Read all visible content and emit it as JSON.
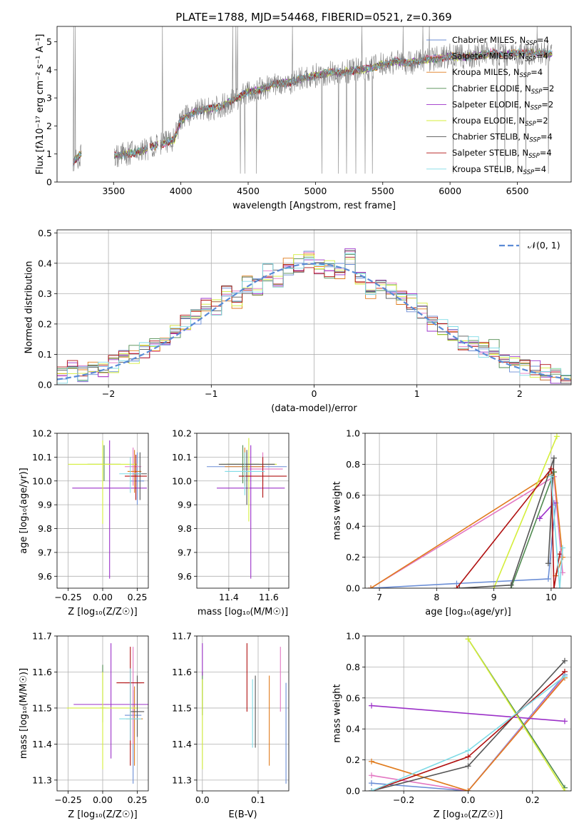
{
  "figure_title": "PLATE=1788, MJD=54468, FIBERID=0521, z=0.369",
  "colors": {
    "Chabrier MILES": "#6b8ed6",
    "Salpeter MILES": "#e377c2",
    "Kroupa MILES": "#e07b1c",
    "Chabrier ELODIE": "#4f8a4f",
    "Salpeter ELODIE": "#9b30c8",
    "Kroupa ELODIE": "#d4ee3a",
    "Chabrier STELIB": "#555555",
    "Salpeter STELIB": "#b01010",
    "Kroupa STELIB": "#7fdbe6",
    "data": "#808080",
    "normal": "#5b8bd6"
  },
  "chart_data": [
    {
      "id": "spectrum",
      "type": "line",
      "title": "PLATE=1788, MJD=54468, FIBERID=0521, z=0.369",
      "xlabel": "wavelength [Angstrom, rest frame]",
      "ylabel": "Flux [fλ10⁻¹⁷ erg cm⁻² s⁻¹ A⁻¹]",
      "xlim": [
        3080,
        6900
      ],
      "ylim": [
        0,
        5.55
      ],
      "xticks": [
        3500,
        4000,
        4500,
        5000,
        5500,
        6000,
        6500
      ],
      "yticks": [
        0,
        1,
        2,
        3,
        4,
        5
      ],
      "legend": "top-right",
      "legend_entries": [
        {
          "label": "Chabrier MILES, N",
          "sub": "SSP",
          "tail": "=4",
          "model": "Chabrier MILES"
        },
        {
          "label": "Salpeter MILES, N",
          "sub": "SSP",
          "tail": "=4",
          "model": "Salpeter MILES"
        },
        {
          "label": "Kroupa MILES, N",
          "sub": "SSP",
          "tail": "=4",
          "model": "Kroupa MILES"
        },
        {
          "label": "Chabrier ELODIE, N",
          "sub": "SSP",
          "tail": "=2",
          "model": "Chabrier ELODIE"
        },
        {
          "label": "Salpeter ELODIE, N",
          "sub": "SSP",
          "tail": "=2",
          "model": "Salpeter ELODIE"
        },
        {
          "label": "Kroupa ELODIE, N",
          "sub": "SSP",
          "tail": "=2",
          "model": "Kroupa ELODIE"
        },
        {
          "label": "Chabrier STELIB, N",
          "sub": "SSP",
          "tail": "=4",
          "model": "Chabrier STELIB"
        },
        {
          "label": "Salpeter STELIB, N",
          "sub": "SSP",
          "tail": "=4",
          "model": "Salpeter STELIB"
        },
        {
          "label": "Kroupa STELIB, N",
          "sub": "SSP",
          "tail": "=4",
          "model": "Kroupa STELIB"
        }
      ],
      "continuum": {
        "x": [
          3200,
          3260,
          3350,
          3450,
          3520,
          3600,
          3700,
          3780,
          3850,
          3950,
          4000,
          4100,
          4200,
          4300,
          4400,
          4500,
          4600,
          4700,
          4800,
          4900,
          5000,
          5100,
          5200,
          5300,
          5400,
          5500,
          5600,
          5700,
          5800,
          5900,
          6000,
          6100,
          6200,
          6300,
          6400,
          6500,
          6600,
          6700,
          6750
        ],
        "y": [
          0.72,
          1.0,
          0.95,
          0.9,
          0.95,
          1.0,
          1.1,
          1.25,
          1.35,
          1.5,
          2.2,
          2.5,
          2.6,
          2.7,
          2.95,
          3.2,
          3.3,
          3.5,
          3.55,
          3.7,
          3.8,
          3.9,
          3.9,
          4.0,
          4.05,
          4.2,
          4.3,
          4.25,
          4.35,
          4.4,
          4.5,
          4.45,
          4.5,
          4.6,
          4.55,
          4.6,
          4.6,
          4.6,
          4.55
        ]
      }
    },
    {
      "id": "residuals",
      "type": "line",
      "xlabel": "(data-model)/error",
      "ylabel": "Normed distribution",
      "xlim": [
        -2.5,
        2.5
      ],
      "ylim": [
        0,
        0.51
      ],
      "xticks": [
        -2,
        -1,
        0,
        1,
        2
      ],
      "yticks": [
        0.0,
        0.1,
        0.2,
        0.3,
        0.4,
        0.5
      ],
      "grid": true,
      "legend": "top-right",
      "legend_label": "𝒩(0, 1)",
      "bin_width": 0.1,
      "hist_center": {
        "x": [
          -2.45,
          -2.35,
          -2.25,
          -2.15,
          -2.05,
          -1.95,
          -1.85,
          -1.75,
          -1.65,
          -1.55,
          -1.45,
          -1.35,
          -1.25,
          -1.15,
          -1.05,
          -0.95,
          -0.85,
          -0.75,
          -0.65,
          -0.55,
          -0.45,
          -0.35,
          -0.25,
          -0.15,
          -0.05,
          0.05,
          0.15,
          0.25,
          0.35,
          0.45,
          0.55,
          0.65,
          0.75,
          0.85,
          0.95,
          1.05,
          1.15,
          1.25,
          1.35,
          1.45,
          1.55,
          1.65,
          1.75,
          1.85,
          1.95,
          2.05,
          2.15,
          2.25,
          2.35,
          2.45
        ],
        "y": [
          0.035,
          0.05,
          0.04,
          0.045,
          0.055,
          0.07,
          0.085,
          0.1,
          0.11,
          0.13,
          0.14,
          0.17,
          0.2,
          0.22,
          0.26,
          0.25,
          0.3,
          0.28,
          0.33,
          0.32,
          0.37,
          0.35,
          0.39,
          0.4,
          0.41,
          0.39,
          0.38,
          0.37,
          0.42,
          0.36,
          0.31,
          0.33,
          0.31,
          0.28,
          0.27,
          0.24,
          0.2,
          0.19,
          0.17,
          0.14,
          0.13,
          0.11,
          0.12,
          0.08,
          0.07,
          0.06,
          0.05,
          0.04,
          0.025,
          0.02
        ]
      }
    },
    {
      "id": "age_vs_Z",
      "type": "scatter",
      "xlabel": "Z [log₁₀(Z/Z☉)]",
      "ylabel": "age  [log₁₀(age/yr)]",
      "xlim": [
        -0.33,
        0.33
      ],
      "ylim": [
        9.55,
        10.2
      ],
      "xticks": [
        -0.25,
        0.0,
        0.25
      ],
      "xticklabels": [
        "−0.25",
        "0.00",
        "0.25"
      ],
      "yticks": [
        9.6,
        9.7,
        9.8,
        9.9,
        10.0,
        10.1,
        10.2
      ],
      "points": [
        {
          "model": "Chabrier MILES",
          "x": 0.25,
          "y": 10.0,
          "xerr": 0.05,
          "yerr": [
            9.9,
            10.12
          ]
        },
        {
          "model": "Salpeter MILES",
          "x": 0.22,
          "y": 10.06,
          "xerr": 0.06,
          "yerr": [
            9.98,
            10.14
          ]
        },
        {
          "model": "Kroupa MILES",
          "x": 0.23,
          "y": 10.04,
          "xerr": 0.05,
          "yerr": [
            9.95,
            10.13
          ]
        },
        {
          "model": "Chabrier ELODIE",
          "x": 0.01,
          "y": 10.07,
          "xerr": 0.12,
          "yerr": [
            10.0,
            10.15
          ]
        },
        {
          "model": "Salpeter ELODIE",
          "x": 0.05,
          "y": 9.97,
          "xerr": 0.27,
          "yerr": [
            9.59,
            10.17
          ]
        },
        {
          "model": "Kroupa ELODIE",
          "x": 0.0,
          "y": 10.07,
          "xerr": 0.25,
          "yerr": [
            9.82,
            10.17
          ]
        },
        {
          "model": "Chabrier STELIB",
          "x": 0.27,
          "y": 10.03,
          "xerr": 0.05,
          "yerr": [
            9.92,
            10.12
          ]
        },
        {
          "model": "Salpeter STELIB",
          "x": 0.24,
          "y": 10.02,
          "xerr": 0.08,
          "yerr": [
            9.92,
            10.11
          ]
        },
        {
          "model": "Kroupa STELIB",
          "x": 0.2,
          "y": 10.03,
          "xerr": 0.08,
          "yerr": [
            9.95,
            10.1
          ]
        }
      ]
    },
    {
      "id": "age_vs_mass",
      "type": "scatter",
      "xlabel": "mass [log₁₀(M/M☉)]",
      "xlim": [
        11.24,
        11.7
      ],
      "ylim": [
        9.55,
        10.2
      ],
      "xticks": [
        11.4,
        11.6
      ],
      "yticks": [
        9.6,
        9.7,
        9.8,
        9.9,
        10.0,
        10.1,
        10.2
      ],
      "points": [
        {
          "model": "Chabrier MILES",
          "x": 11.49,
          "y": 10.06,
          "xerr": 0.2,
          "yerr": [
            10.0,
            10.12
          ]
        },
        {
          "model": "Salpeter MILES",
          "x": 11.57,
          "y": 10.05,
          "xerr": 0.1,
          "yerr": [
            9.98,
            10.12
          ]
        },
        {
          "model": "Kroupa MILES",
          "x": 11.48,
          "y": 10.06,
          "xerr": 0.1,
          "yerr": [
            9.98,
            10.14
          ]
        },
        {
          "model": "Chabrier ELODIE",
          "x": 11.47,
          "y": 10.07,
          "xerr": 0.08,
          "yerr": [
            9.99,
            10.15
          ]
        },
        {
          "model": "Salpeter ELODIE",
          "x": 11.51,
          "y": 9.97,
          "xerr": 0.17,
          "yerr": [
            9.59,
            10.15
          ]
        },
        {
          "model": "Kroupa ELODIE",
          "x": 11.5,
          "y": 10.07,
          "xerr": 0.14,
          "yerr": [
            9.83,
            10.18
          ]
        },
        {
          "model": "Chabrier STELIB",
          "x": 11.49,
          "y": 10.07,
          "xerr": 0.14,
          "yerr": [
            9.9,
            10.13
          ]
        },
        {
          "model": "Salpeter STELIB",
          "x": 11.57,
          "y": 10.02,
          "xerr": 0.12,
          "yerr": [
            9.93,
            10.1
          ]
        },
        {
          "model": "Kroupa STELIB",
          "x": 11.48,
          "y": 10.04,
          "xerr": 0.1,
          "yerr": [
            9.94,
            10.12
          ]
        }
      ]
    },
    {
      "id": "weight_vs_age",
      "type": "line",
      "xlabel": "age  [log₁₀(age/yr)]",
      "ylabel": "mass weight",
      "xlim": [
        6.75,
        10.35
      ],
      "ylim": [
        0,
        1.0
      ],
      "xticks": [
        7,
        8,
        9,
        10
      ],
      "yticks": [
        0.0,
        0.2,
        0.4,
        0.6,
        0.8,
        1.0
      ],
      "series": [
        {
          "model": "Chabrier MILES",
          "x": [
            6.85,
            8.35,
            9.95,
            10.08
          ],
          "y": [
            0.0,
            0.03,
            0.06,
            0.55
          ]
        },
        {
          "model": "Salpeter MILES",
          "x": [
            6.85,
            10.05,
            10.2
          ],
          "y": [
            0.0,
            0.72,
            0.1
          ]
        },
        {
          "model": "Kroupa MILES",
          "x": [
            6.85,
            10.05,
            10.2,
            10.08
          ],
          "y": [
            0.0,
            0.75,
            0.2,
            0.08
          ]
        },
        {
          "model": "Chabrier ELODIE",
          "x": [
            9.3,
            10.05
          ],
          "y": [
            0.0,
            0.75
          ]
        },
        {
          "model": "Salpeter ELODIE",
          "x": [
            9.8,
            10.05
          ],
          "y": [
            0.45,
            0.55
          ]
        },
        {
          "model": "Kroupa ELODIE",
          "x": [
            9.0,
            10.1
          ],
          "y": [
            0.0,
            0.98
          ]
        },
        {
          "model": "Chabrier STELIB",
          "x": [
            8.4,
            9.3,
            10.05,
            9.95
          ],
          "y": [
            0.0,
            0.02,
            0.84,
            0.16
          ]
        },
        {
          "model": "Salpeter STELIB",
          "x": [
            8.35,
            10.0,
            10.05,
            10.15
          ],
          "y": [
            0.0,
            0.77,
            0.0,
            0.22
          ]
        },
        {
          "model": "Kroupa STELIB",
          "x": [
            10.0,
            10.15,
            10.2
          ],
          "y": [
            0.72,
            0.0,
            0.26
          ]
        }
      ]
    },
    {
      "id": "mass_vs_Z",
      "type": "scatter",
      "xlabel": "Z [log₁₀(Z/Z☉)]",
      "ylabel": "mass [log₁₀(M/M☉)]",
      "xlim": [
        -0.33,
        0.33
      ],
      "ylim": [
        11.27,
        11.7
      ],
      "xticks": [
        -0.25,
        0.0,
        0.25
      ],
      "xticklabels": [
        "−0.25",
        "0.00",
        "0.25"
      ],
      "yticks": [
        11.3,
        11.4,
        11.5,
        11.6,
        11.7
      ],
      "points": [
        {
          "model": "Chabrier MILES",
          "x": 0.22,
          "y": 11.48,
          "xerr": 0.06,
          "yerr": [
            11.29,
            11.55
          ]
        },
        {
          "model": "Salpeter MILES",
          "x": 0.22,
          "y": 11.57,
          "xerr": 0.06,
          "yerr": [
            11.4,
            11.67
          ]
        },
        {
          "model": "Kroupa MILES",
          "x": 0.23,
          "y": 11.47,
          "xerr": 0.06,
          "yerr": [
            11.34,
            11.56
          ]
        },
        {
          "model": "Chabrier ELODIE",
          "x": 0.0,
          "y": 11.5,
          "xerr": 0.02,
          "yerr": [
            11.46,
            11.62
          ]
        },
        {
          "model": "Salpeter ELODIE",
          "x": 0.06,
          "y": 11.51,
          "xerr": 0.27,
          "yerr": [
            11.36,
            11.68
          ]
        },
        {
          "model": "Kroupa ELODIE",
          "x": 0.0,
          "y": 11.5,
          "xerr": 0.26,
          "yerr": [
            11.33,
            11.6
          ]
        },
        {
          "model": "Chabrier STELIB",
          "x": 0.25,
          "y": 11.49,
          "xerr": 0.05,
          "yerr": [
            11.42,
            11.59
          ]
        },
        {
          "model": "Salpeter STELIB",
          "x": 0.2,
          "y": 11.57,
          "xerr": 0.1,
          "yerr": [
            11.34,
            11.67
          ]
        },
        {
          "model": "Kroupa STELIB",
          "x": 0.2,
          "y": 11.47,
          "xerr": 0.08,
          "yerr": [
            11.41,
            11.61
          ]
        }
      ]
    },
    {
      "id": "mass_vs_ebv",
      "type": "scatter",
      "xlabel": "E(B-V)",
      "xlim": [
        -0.01,
        0.155
      ],
      "ylim": [
        11.27,
        11.7
      ],
      "xticks": [
        0.0,
        0.1
      ],
      "yticks": [
        11.3,
        11.4,
        11.5,
        11.6,
        11.7
      ],
      "points": [
        {
          "model": "Chabrier MILES",
          "x": 0.15,
          "y": 11.49,
          "yerr": [
            11.29,
            11.57
          ]
        },
        {
          "model": "Salpeter MILES",
          "x": 0.14,
          "y": 11.59,
          "yerr": [
            11.49,
            11.67
          ]
        },
        {
          "model": "Kroupa MILES",
          "x": 0.12,
          "y": 11.47,
          "yerr": [
            11.34,
            11.59
          ]
        },
        {
          "model": "Chabrier ELODIE",
          "x": 0.0,
          "y": 11.55,
          "yerr": [
            11.48,
            11.6
          ]
        },
        {
          "model": "Salpeter ELODIE",
          "x": 0.0,
          "y": 11.63,
          "yerr": [
            11.59,
            11.68
          ]
        },
        {
          "model": "Kroupa ELODIE",
          "x": 0.0,
          "y": 11.45,
          "yerr": [
            11.33,
            11.58
          ]
        },
        {
          "model": "Chabrier STELIB",
          "x": 0.095,
          "y": 11.5,
          "yerr": [
            11.39,
            11.59
          ]
        },
        {
          "model": "Salpeter STELIB",
          "x": 0.08,
          "y": 11.58,
          "yerr": [
            11.49,
            11.68
          ]
        },
        {
          "model": "Kroupa STELIB",
          "x": 0.09,
          "y": 11.48,
          "yerr": [
            11.39,
            11.58
          ]
        }
      ]
    },
    {
      "id": "weight_vs_Z",
      "type": "line",
      "xlabel": "Z [log₁₀(Z/Z☉)]",
      "ylabel": "mass weight",
      "xlim": [
        -0.32,
        0.32
      ],
      "ylim": [
        0,
        1.0
      ],
      "xticks": [
        -0.2,
        0.0,
        0.2
      ],
      "xticklabels": [
        "−0.2",
        "0.0",
        "0.2"
      ],
      "yticks": [
        0.0,
        0.2,
        0.4,
        0.6,
        0.8,
        1.0
      ],
      "series": [
        {
          "model": "Chabrier MILES",
          "x": [
            -0.3,
            0.0,
            0.3
          ],
          "y": [
            0.05,
            0.0,
            0.75
          ]
        },
        {
          "model": "Salpeter MILES",
          "x": [
            -0.3,
            0.0,
            0.3
          ],
          "y": [
            0.1,
            0.0,
            0.74
          ]
        },
        {
          "model": "Kroupa MILES",
          "x": [
            -0.3,
            0.0,
            0.3
          ],
          "y": [
            0.19,
            0.0,
            0.73
          ]
        },
        {
          "model": "Chabrier ELODIE",
          "x": [
            0.0,
            0.3
          ],
          "y": [
            0.98,
            0.02
          ]
        },
        {
          "model": "Salpeter ELODIE",
          "x": [
            -0.3,
            0.3
          ],
          "y": [
            0.55,
            0.45
          ]
        },
        {
          "model": "Kroupa ELODIE",
          "x": [
            0.0,
            0.3
          ],
          "y": [
            0.98,
            0.0
          ]
        },
        {
          "model": "Chabrier STELIB",
          "x": [
            -0.3,
            0.0,
            0.3
          ],
          "y": [
            0.0,
            0.16,
            0.84
          ]
        },
        {
          "model": "Salpeter STELIB",
          "x": [
            -0.3,
            0.0,
            0.3
          ],
          "y": [
            0.0,
            0.22,
            0.77
          ]
        },
        {
          "model": "Kroupa STELIB",
          "x": [
            -0.3,
            0.0,
            0.3
          ],
          "y": [
            0.0,
            0.26,
            0.74
          ]
        }
      ]
    }
  ]
}
